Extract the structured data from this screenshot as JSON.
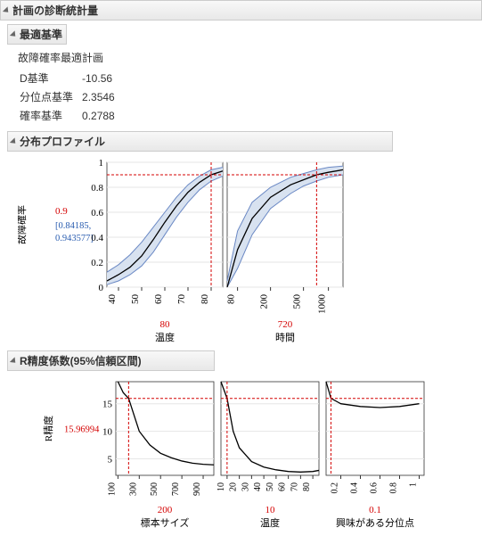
{
  "main_header": "計画の診断統計量",
  "optimality": {
    "header": "最適基準",
    "title": "故障確率最適計画",
    "rows": [
      {
        "label": "D基準",
        "value": "-10.56"
      },
      {
        "label": "分位点基準",
        "value": "2.3546"
      },
      {
        "label": "確率基準",
        "value": "0.2788"
      }
    ]
  },
  "profile": {
    "header": "分布プロファイル",
    "ylabel": "故障確率",
    "current_y": "0.9",
    "ci": "[0.84185, 0.943577]",
    "plot_colors": {
      "line": "#000000",
      "band_fill": "#d8e2f0",
      "band_edge": "#6a88c4",
      "ref": "#d40000",
      "grid": "#e6e6e6",
      "axis": "#333333"
    },
    "panels": [
      {
        "xlabel": "温度",
        "current_x": "80",
        "ticks": [
          "40",
          "50",
          "60",
          "70",
          "80"
        ],
        "tick_vals": [
          40,
          50,
          60,
          70,
          80
        ],
        "xlim": [
          35,
          85
        ],
        "yticks": [
          "0",
          "0.2",
          "0.4",
          "0.6",
          "0.8",
          "1"
        ],
        "ytick_vals": [
          0,
          0.2,
          0.4,
          0.6,
          0.8,
          1
        ],
        "ylim": [
          0,
          1
        ],
        "ref_x": 80,
        "ref_y": 0.9,
        "line": [
          [
            35,
            0.05
          ],
          [
            40,
            0.1
          ],
          [
            45,
            0.16
          ],
          [
            50,
            0.25
          ],
          [
            55,
            0.38
          ],
          [
            60,
            0.52
          ],
          [
            65,
            0.65
          ],
          [
            70,
            0.76
          ],
          [
            75,
            0.84
          ],
          [
            80,
            0.9
          ],
          [
            85,
            0.93
          ]
        ],
        "upper": [
          [
            35,
            0.12
          ],
          [
            40,
            0.18
          ],
          [
            45,
            0.26
          ],
          [
            50,
            0.36
          ],
          [
            55,
            0.48
          ],
          [
            60,
            0.6
          ],
          [
            65,
            0.72
          ],
          [
            70,
            0.82
          ],
          [
            75,
            0.89
          ],
          [
            80,
            0.94
          ],
          [
            85,
            0.96
          ]
        ],
        "lower": [
          [
            35,
            0.02
          ],
          [
            40,
            0.05
          ],
          [
            45,
            0.1
          ],
          [
            50,
            0.17
          ],
          [
            55,
            0.28
          ],
          [
            60,
            0.42
          ],
          [
            65,
            0.56
          ],
          [
            70,
            0.68
          ],
          [
            75,
            0.78
          ],
          [
            80,
            0.85
          ],
          [
            85,
            0.89
          ]
        ]
      },
      {
        "xlabel": "時間",
        "current_x": "720",
        "ticks": [
          "80",
          "200",
          "500",
          "1000"
        ],
        "tick_vals": [
          80,
          200,
          500,
          1000
        ],
        "xlim": [
          60,
          1500
        ],
        "xlog": true,
        "ref_x": 720,
        "ref_y": 0.9,
        "line": [
          [
            60,
            0.0
          ],
          [
            80,
            0.3
          ],
          [
            120,
            0.55
          ],
          [
            200,
            0.72
          ],
          [
            350,
            0.82
          ],
          [
            500,
            0.86
          ],
          [
            720,
            0.9
          ],
          [
            1000,
            0.92
          ],
          [
            1500,
            0.94
          ]
        ],
        "upper": [
          [
            60,
            0.05
          ],
          [
            80,
            0.45
          ],
          [
            120,
            0.68
          ],
          [
            200,
            0.8
          ],
          [
            350,
            0.88
          ],
          [
            500,
            0.91
          ],
          [
            720,
            0.94
          ],
          [
            1000,
            0.96
          ],
          [
            1500,
            0.97
          ]
        ],
        "lower": [
          [
            60,
            0.0
          ],
          [
            80,
            0.15
          ],
          [
            120,
            0.42
          ],
          [
            200,
            0.63
          ],
          [
            350,
            0.75
          ],
          [
            500,
            0.81
          ],
          [
            720,
            0.85
          ],
          [
            1000,
            0.88
          ],
          [
            1500,
            0.9
          ]
        ]
      }
    ]
  },
  "rprecision": {
    "header": "R精度係数(95%信頼区間)",
    "ylabel": "R精度",
    "current_y": "15.96994",
    "ref_y": 15.96994,
    "plot_colors": {
      "line": "#000000",
      "ref": "#d40000",
      "grid": "#e6e6e6",
      "axis": "#333333"
    },
    "panels": [
      {
        "xlabel": "標本サイズ",
        "current_x": "200",
        "ticks": [
          "100",
          "300",
          "500",
          "700",
          "900"
        ],
        "tick_vals": [
          100,
          300,
          500,
          700,
          900
        ],
        "xlim": [
          80,
          1000
        ],
        "yticks": [
          "5",
          "10",
          "15"
        ],
        "ytick_vals": [
          5,
          10,
          15
        ],
        "ylim": [
          2,
          19
        ],
        "ref_x": 200,
        "line": [
          [
            100,
            19
          ],
          [
            150,
            17
          ],
          [
            200,
            15.97
          ],
          [
            300,
            10
          ],
          [
            400,
            7.5
          ],
          [
            500,
            6
          ],
          [
            600,
            5.2
          ],
          [
            700,
            4.6
          ],
          [
            800,
            4.2
          ],
          [
            900,
            4.0
          ],
          [
            1000,
            3.9
          ]
        ]
      },
      {
        "xlabel": "温度",
        "current_x": "10",
        "ticks": [
          "10",
          "20",
          "30",
          "40",
          "50",
          "60",
          "70",
          "80"
        ],
        "tick_vals": [
          10,
          20,
          30,
          40,
          50,
          60,
          70,
          80
        ],
        "xlim": [
          5,
          85
        ],
        "ref_x": 10,
        "line": [
          [
            5,
            19
          ],
          [
            10,
            15.97
          ],
          [
            15,
            10
          ],
          [
            20,
            7
          ],
          [
            30,
            4.5
          ],
          [
            40,
            3.5
          ],
          [
            50,
            3.0
          ],
          [
            60,
            2.7
          ],
          [
            70,
            2.6
          ],
          [
            80,
            2.7
          ],
          [
            85,
            2.9
          ]
        ]
      },
      {
        "xlabel": "興味がある分位点",
        "current_x": "0.1",
        "ticks": [
          "0.2",
          "0.4",
          "0.6",
          "0.8",
          "1"
        ],
        "tick_vals": [
          0.2,
          0.4,
          0.6,
          0.8,
          1
        ],
        "xlim": [
          0.05,
          1.05
        ],
        "ref_x": 0.1,
        "line": [
          [
            0.05,
            19
          ],
          [
            0.1,
            15.97
          ],
          [
            0.2,
            15.0
          ],
          [
            0.4,
            14.5
          ],
          [
            0.6,
            14.3
          ],
          [
            0.8,
            14.5
          ],
          [
            1.0,
            15.0
          ]
        ]
      }
    ]
  }
}
